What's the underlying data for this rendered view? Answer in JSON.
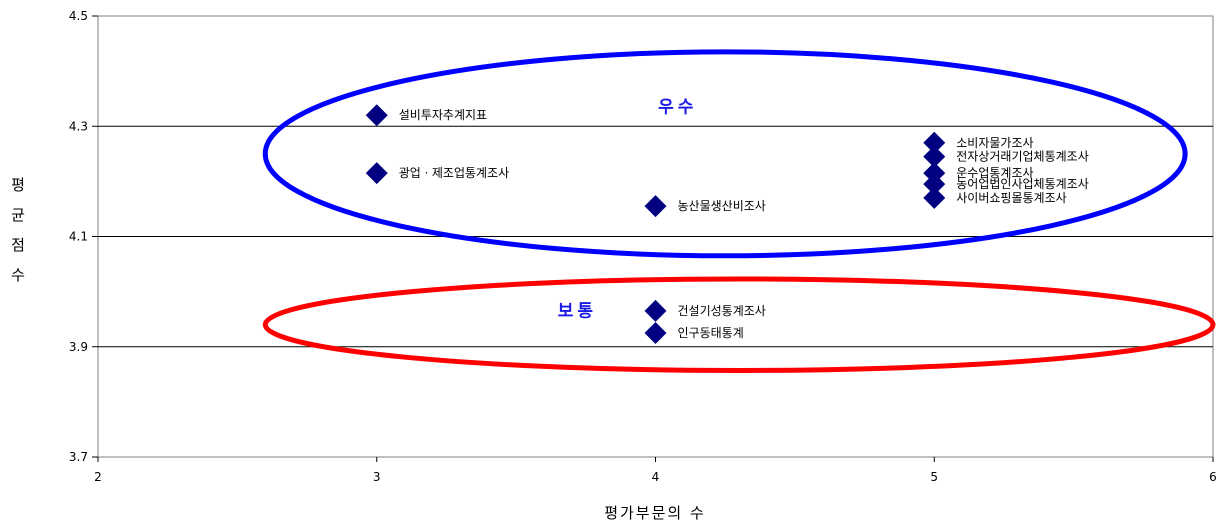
{
  "chart_data": {
    "type": "scatter",
    "xlabel": "평가부문의 수",
    "ylabel": "평균점수",
    "xlim": [
      2,
      6
    ],
    "ylim": [
      3.7,
      4.5
    ],
    "x_ticks": [
      "2",
      "3",
      "4",
      "5",
      "6"
    ],
    "y_ticks": [
      "3.7",
      "3.9",
      "4.1",
      "4.3",
      "4.5"
    ],
    "gridlines": "horizontal",
    "marker_color": "#000080",
    "points": [
      {
        "label": "설비투자추계지표",
        "x": 3,
        "y": 4.32
      },
      {
        "label": "광업ㆍ제조업통계조사",
        "x": 3,
        "y": 4.215
      },
      {
        "label": "농산물생산비조사",
        "x": 4,
        "y": 4.155
      },
      {
        "label": "소비자물가조사",
        "x": 5,
        "y": 4.27
      },
      {
        "label": "전자상거래기업체통계조사",
        "x": 5,
        "y": 4.245
      },
      {
        "label": "운수업통계조사",
        "x": 5,
        "y": 4.215
      },
      {
        "label": "농어업법인사업체통계조사",
        "x": 5,
        "y": 4.195
      },
      {
        "label": "사이버쇼핑몰통계조사",
        "x": 5,
        "y": 4.17
      },
      {
        "label": "건설기성통계조사",
        "x": 4,
        "y": 3.965
      },
      {
        "label": "인구동태통계",
        "x": 4,
        "y": 3.925
      }
    ],
    "annotations": [
      {
        "text": "우수",
        "color": "#0000ff",
        "cx": 4.25,
        "cy": 4.25,
        "rx": 1.65,
        "ry": 0.185,
        "label_x": 4.08,
        "label_y": 4.325
      },
      {
        "text": "보통",
        "color": "#ff0000",
        "cx": 4.3,
        "cy": 3.94,
        "rx": 1.7,
        "ry": 0.083,
        "label_x": 3.72,
        "label_y": 3.955
      }
    ]
  }
}
